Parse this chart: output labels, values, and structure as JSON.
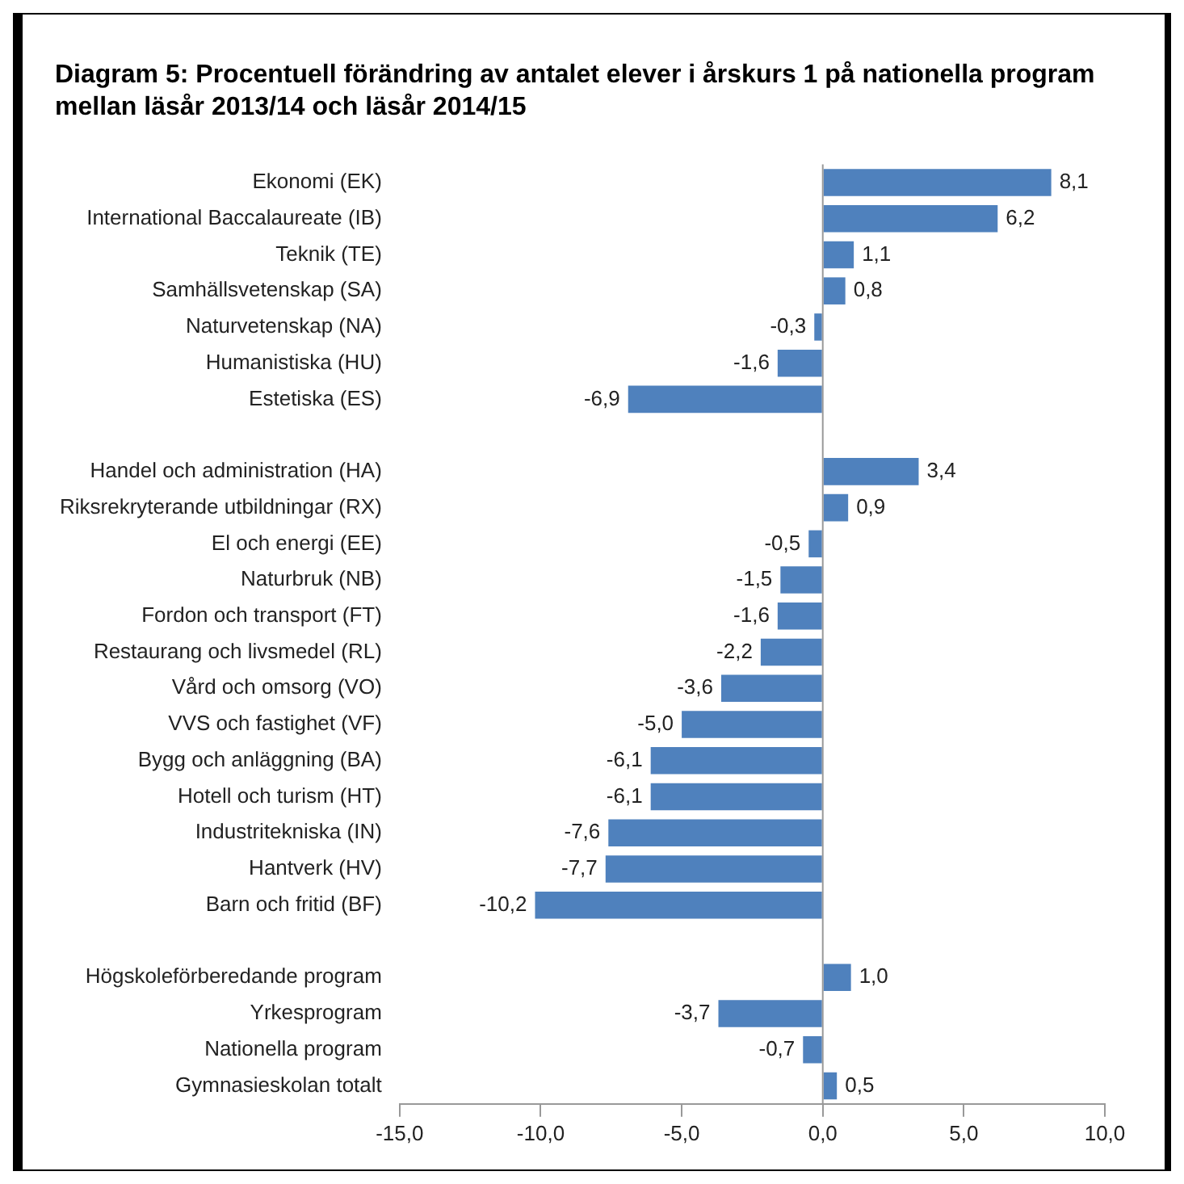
{
  "chart_data": {
    "type": "bar",
    "orientation": "horizontal",
    "title": "Diagram 5: Procentuell förändring av antalet elever i årskurs 1 på nationella program mellan läsår 2013/14 och läsår 2014/15",
    "categories": [
      "Ekonomi (EK)",
      "International Baccalaureate (IB)",
      "Teknik (TE)",
      "Samhällsvetenskap (SA)",
      "Naturvetenskap (NA)",
      "Humanistiska (HU)",
      "Estetiska (ES)",
      null,
      "Handel och administration (HA)",
      "Riksrekryterande utbildningar (RX)",
      "El och energi (EE)",
      "Naturbruk (NB)",
      "Fordon och transport (FT)",
      "Restaurang och livsmedel (RL)",
      "Vård och omsorg (VO)",
      "VVS och fastighet (VF)",
      "Bygg och anläggning (BA)",
      "Hotell och turism (HT)",
      "Industritekniska (IN)",
      "Hantverk (HV)",
      "Barn och fritid (BF)",
      null,
      "Högskoleförberedande program",
      "Yrkesprogram",
      "Nationella program",
      "Gymnasieskolan totalt"
    ],
    "values": [
      8.1,
      6.2,
      1.1,
      0.8,
      -0.3,
      -1.6,
      -6.9,
      null,
      3.4,
      0.9,
      -0.5,
      -1.5,
      -1.6,
      -2.2,
      -3.6,
      -5.0,
      -6.1,
      -6.1,
      -7.6,
      -7.7,
      -10.2,
      null,
      1.0,
      -3.7,
      -0.7,
      0.5
    ],
    "value_labels": [
      "8,1",
      "6,2",
      "1,1",
      "0,8",
      "-0,3",
      "-1,6",
      "-6,9",
      null,
      "3,4",
      "0,9",
      "-0,5",
      "-1,5",
      "-1,6",
      "-2,2",
      "-3,6",
      "-5,0",
      "-6,1",
      "-6,1",
      "-7,6",
      "-7,7",
      "-10,2",
      null,
      "1,0",
      "-3,7",
      "-0,7",
      "0,5"
    ],
    "color": "#4f81bd",
    "xlim": [
      -15,
      10
    ],
    "xticks": [
      {
        "value": -15,
        "label": "-15,0"
      },
      {
        "value": -10,
        "label": "-10,0"
      },
      {
        "value": -5,
        "label": "-5,0"
      },
      {
        "value": 0,
        "label": "0,0"
      },
      {
        "value": 5,
        "label": "5,0"
      },
      {
        "value": 10,
        "label": "10,0"
      }
    ]
  }
}
